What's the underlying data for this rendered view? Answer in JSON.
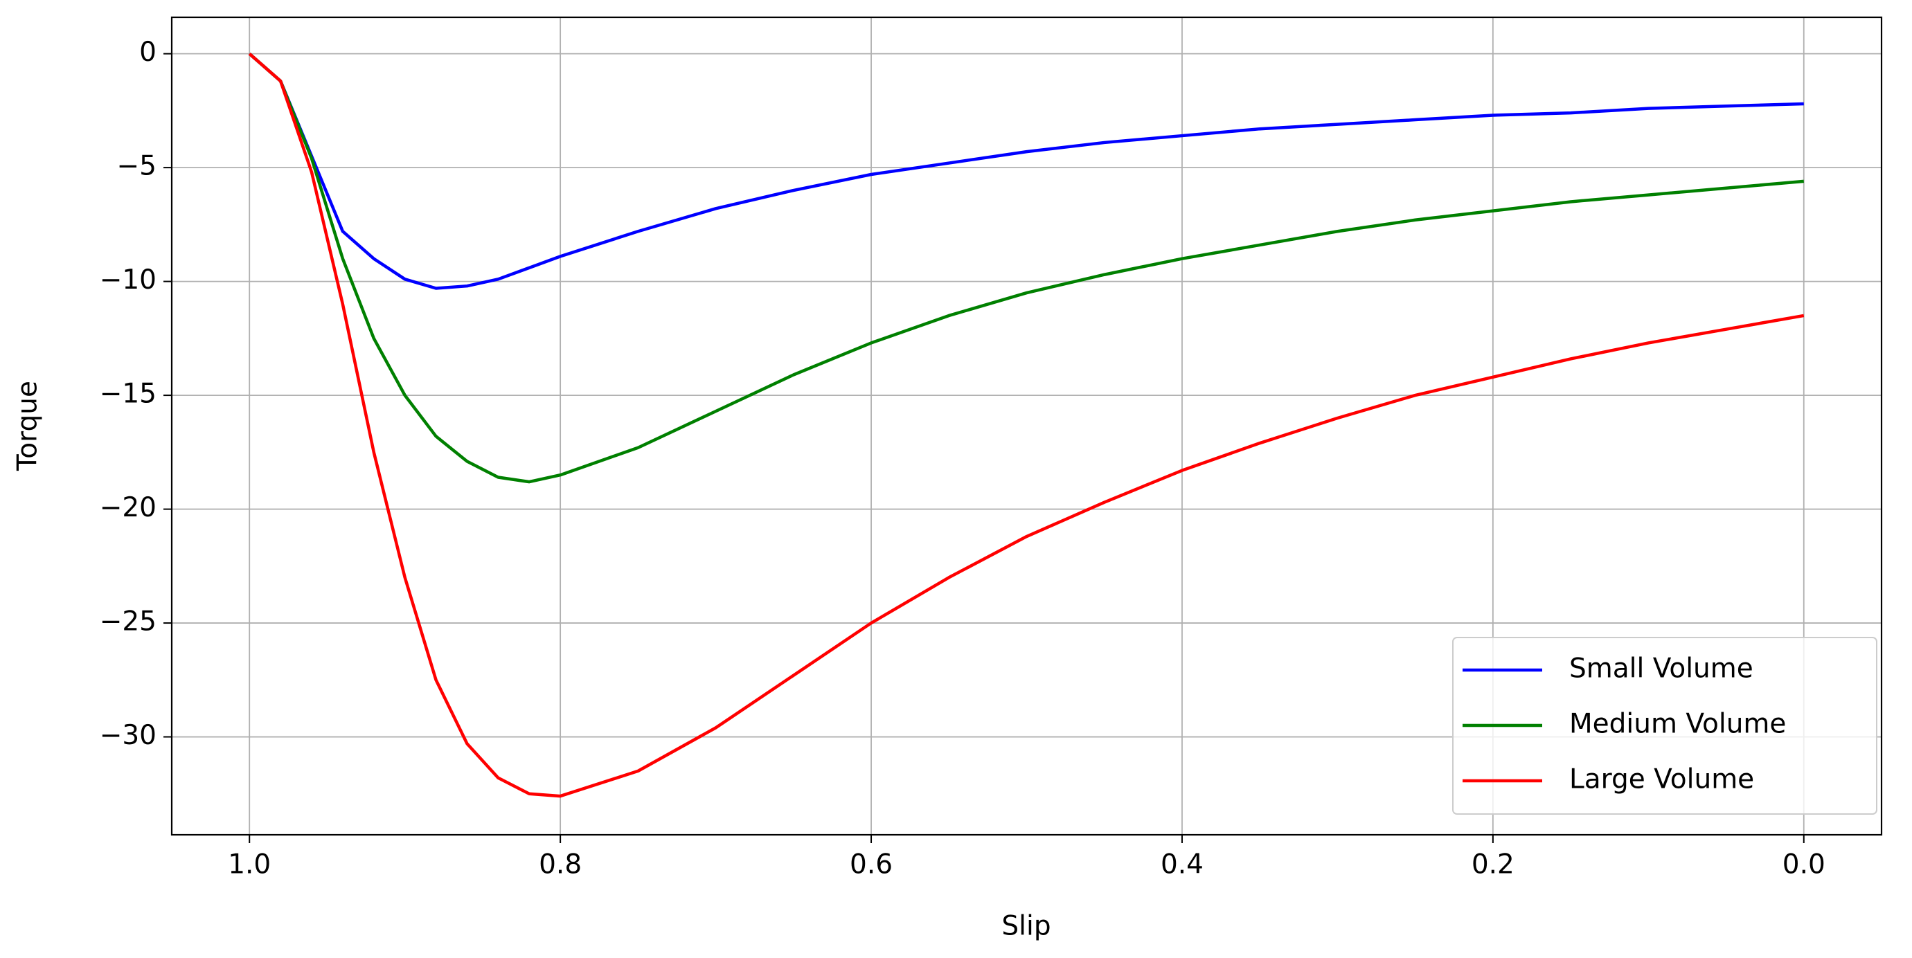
{
  "chart_data": {
    "type": "line",
    "x_label": "Slip",
    "y_label": "Torque",
    "x": [
      1.0,
      0.98,
      0.96,
      0.94,
      0.92,
      0.9,
      0.88,
      0.86,
      0.84,
      0.82,
      0.8,
      0.75,
      0.7,
      0.65,
      0.6,
      0.55,
      0.5,
      0.45,
      0.4,
      0.35,
      0.3,
      0.25,
      0.2,
      0.15,
      0.1,
      0.05,
      0.0
    ],
    "series": [
      {
        "name": "Small Volume",
        "color": "#0000ff",
        "values": [
          0,
          -1.2,
          -4.5,
          -7.8,
          -9.0,
          -9.9,
          -10.3,
          -10.2,
          -9.9,
          -9.4,
          -8.9,
          -7.8,
          -6.8,
          -6.0,
          -5.3,
          -4.8,
          -4.3,
          -3.9,
          -3.6,
          -3.3,
          -3.1,
          -2.9,
          -2.7,
          -2.6,
          -2.4,
          -2.3,
          -2.2
        ]
      },
      {
        "name": "Medium Volume",
        "color": "#008000",
        "values": [
          0,
          -1.2,
          -4.6,
          -9.0,
          -12.5,
          -15.0,
          -16.8,
          -17.9,
          -18.6,
          -18.8,
          -18.5,
          -17.3,
          -15.7,
          -14.1,
          -12.7,
          -11.5,
          -10.5,
          -9.7,
          -9.0,
          -8.4,
          -7.8,
          -7.3,
          -6.9,
          -6.5,
          -6.2,
          -5.9,
          -5.6
        ]
      },
      {
        "name": "Large Volume",
        "color": "#ff0000",
        "values": [
          0,
          -1.2,
          -5.2,
          -11.0,
          -17.5,
          -23.0,
          -27.5,
          -30.3,
          -31.8,
          -32.5,
          -32.6,
          -31.5,
          -29.6,
          -27.3,
          -25.0,
          -23.0,
          -21.2,
          -19.7,
          -18.3,
          -17.1,
          -16.0,
          -15.0,
          -14.2,
          -13.4,
          -12.7,
          -12.1,
          -11.5
        ]
      }
    ],
    "xlim": [
      1.05,
      -0.05
    ],
    "xticks": [
      {
        "value": 1.0,
        "label": "1.0"
      },
      0.8,
      0.6,
      0.4,
      0.2,
      {
        "value": 0.0,
        "label": "0.0"
      }
    ],
    "ylim": [
      -34.3,
      1.6
    ],
    "yticks": [
      0,
      {
        "value": -5,
        "label": "−5"
      },
      {
        "value": -10,
        "label": "−10"
      },
      {
        "value": -15,
        "label": "−15"
      },
      {
        "value": -20,
        "label": "−20"
      },
      {
        "value": -25,
        "label": "−25"
      },
      {
        "value": -30,
        "label": "−30"
      }
    ],
    "grid": true,
    "legend": "lower right"
  }
}
